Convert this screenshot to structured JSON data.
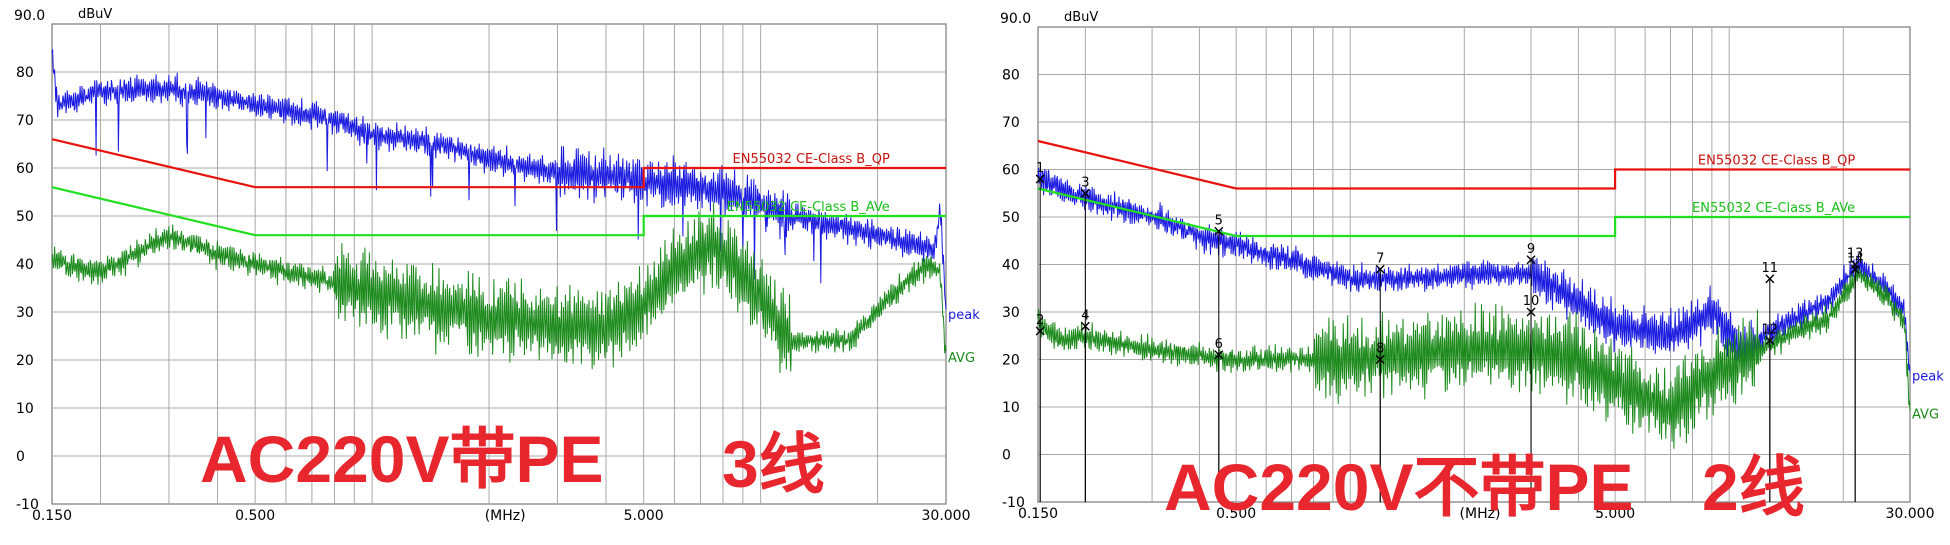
{
  "chart_data": [
    {
      "type": "line",
      "overlay_text": "AC220V带PE",
      "overlay_text_2": "3线",
      "unit_label": "dBuV",
      "x_unit_label": "(MHz)",
      "x_scale": "log",
      "xlim": [
        0.15,
        30.0
      ],
      "ylim": [
        -10,
        90
      ],
      "y_top_label": "90.0",
      "y_ticks": [
        "80",
        "70",
        "60",
        "50",
        "40",
        "30",
        "20",
        "10",
        "0",
        "-10"
      ],
      "x_ticks": [
        {
          "value": 0.15,
          "label": "0.150"
        },
        {
          "value": 0.5,
          "label": "0.500"
        },
        {
          "value": 5.0,
          "label": "5.000"
        },
        {
          "value": 30.0,
          "label": "30.000"
        }
      ],
      "grid": true,
      "limits": [
        {
          "name": "EN55032 CE-Class B_QP",
          "color": "#e8120c",
          "points": [
            [
              0.15,
              66
            ],
            [
              0.5,
              56
            ],
            [
              5.0,
              56
            ],
            [
              5.0,
              60
            ],
            [
              30.0,
              60
            ]
          ]
        },
        {
          "name": "EN55032 CE-Class B_AVe",
          "color": "#1fe01f",
          "points": [
            [
              0.15,
              56
            ],
            [
              0.5,
              46
            ],
            [
              5.0,
              46
            ],
            [
              5.0,
              50
            ],
            [
              30.0,
              50
            ]
          ]
        }
      ],
      "series": [
        {
          "name": "peak",
          "color": "#1a1ae0",
          "anchors": [
            [
              0.15,
              84
            ],
            [
              0.155,
              73
            ],
            [
              0.2,
              76
            ],
            [
              0.3,
              76.5
            ],
            [
              0.4,
              75
            ],
            [
              0.5,
              73
            ],
            [
              0.8,
              70
            ],
            [
              1.0,
              67
            ],
            [
              1.5,
              65
            ],
            [
              2.0,
              62
            ],
            [
              3.0,
              59
            ],
            [
              4.5,
              58
            ],
            [
              5.0,
              57
            ],
            [
              7.0,
              56
            ],
            [
              9.0,
              54
            ],
            [
              12.0,
              50
            ],
            [
              20.0,
              46
            ],
            [
              28.0,
              43
            ],
            [
              29.0,
              52
            ],
            [
              30.0,
              29
            ]
          ]
        },
        {
          "name": "AVG",
          "color": "#1b8a1b",
          "anchors": [
            [
              0.15,
              41
            ],
            [
              0.2,
              38
            ],
            [
              0.3,
              46
            ],
            [
              0.4,
              42
            ],
            [
              0.5,
              40
            ],
            [
              0.8,
              36
            ],
            [
              1.0,
              34
            ],
            [
              1.5,
              31
            ],
            [
              2.0,
              29
            ],
            [
              3.0,
              27
            ],
            [
              4.0,
              27
            ],
            [
              5.0,
              31
            ],
            [
              6.0,
              39
            ],
            [
              7.5,
              44
            ],
            [
              9.0,
              38
            ],
            [
              12.0,
              24
            ],
            [
              17.0,
              24
            ],
            [
              22.0,
              34
            ],
            [
              27.0,
              40
            ],
            [
              29.0,
              38
            ],
            [
              30.0,
              20
            ]
          ]
        }
      ],
      "markers": []
    },
    {
      "type": "line",
      "overlay_text": "AC220V不带PE",
      "overlay_text_2": "2线",
      "unit_label": "dBuV",
      "x_unit_label": "(MHz)",
      "x_scale": "log",
      "xlim": [
        0.15,
        30.0
      ],
      "ylim": [
        -10,
        90
      ],
      "y_top_label": "90.0",
      "y_ticks": [
        "80",
        "70",
        "60",
        "50",
        "40",
        "30",
        "20",
        "10",
        "0",
        "-10"
      ],
      "x_ticks": [
        {
          "value": 0.15,
          "label": "0.150"
        },
        {
          "value": 0.5,
          "label": "0.500"
        },
        {
          "value": 5.0,
          "label": "5.000"
        },
        {
          "value": 30.0,
          "label": "30.000"
        }
      ],
      "grid": true,
      "limits": [
        {
          "name": "EN55032 CE-Class B_QP",
          "color": "#e8120c",
          "points": [
            [
              0.15,
              66
            ],
            [
              0.5,
              56
            ],
            [
              5.0,
              56
            ],
            [
              5.0,
              60
            ],
            [
              30.0,
              60
            ]
          ]
        },
        {
          "name": "EN55032 CE-Class B_AVe",
          "color": "#1fe01f",
          "points": [
            [
              0.15,
              56
            ],
            [
              0.5,
              46
            ],
            [
              5.0,
              46
            ],
            [
              5.0,
              50
            ],
            [
              30.0,
              50
            ]
          ]
        }
      ],
      "series": [
        {
          "name": "peak",
          "color": "#1a1ae0",
          "anchors": [
            [
              0.15,
              58
            ],
            [
              0.2,
              54
            ],
            [
              0.3,
              50
            ],
            [
              0.4,
              46
            ],
            [
              0.5,
              44
            ],
            [
              0.7,
              41
            ],
            [
              1.0,
              37
            ],
            [
              1.5,
              37
            ],
            [
              2.0,
              38
            ],
            [
              3.0,
              38
            ],
            [
              4.0,
              32
            ],
            [
              5.0,
              27
            ],
            [
              7.0,
              25
            ],
            [
              9.0,
              30
            ],
            [
              11.0,
              22
            ],
            [
              13.0,
              26
            ],
            [
              18.0,
              32
            ],
            [
              22.0,
              40
            ],
            [
              26.0,
              35
            ],
            [
              29.0,
              30
            ],
            [
              30.0,
              16
            ]
          ]
        },
        {
          "name": "AVG",
          "color": "#1b8a1b",
          "anchors": [
            [
              0.15,
              28
            ],
            [
              0.17,
              24
            ],
            [
              0.2,
              25
            ],
            [
              0.3,
              22
            ],
            [
              0.5,
              20
            ],
            [
              1.0,
              20
            ],
            [
              2.0,
              22
            ],
            [
              3.0,
              22
            ],
            [
              4.0,
              20
            ],
            [
              5.0,
              15
            ],
            [
              6.0,
              12
            ],
            [
              7.0,
              9
            ],
            [
              9.0,
              17
            ],
            [
              11.0,
              20
            ],
            [
              15.0,
              26
            ],
            [
              18.0,
              28
            ],
            [
              22.0,
              38
            ],
            [
              26.0,
              33
            ],
            [
              29.0,
              28
            ],
            [
              30.0,
              8
            ]
          ]
        }
      ],
      "markers": [
        {
          "label": "1",
          "x": 0.152,
          "y": 58
        },
        {
          "label": "2",
          "x": 0.152,
          "y": 26
        },
        {
          "label": "3",
          "x": 0.2,
          "y": 55
        },
        {
          "label": "4",
          "x": 0.2,
          "y": 27
        },
        {
          "label": "5",
          "x": 0.45,
          "y": 47
        },
        {
          "label": "6",
          "x": 0.45,
          "y": 21
        },
        {
          "label": "7",
          "x": 1.2,
          "y": 39
        },
        {
          "label": "8",
          "x": 1.2,
          "y": 20
        },
        {
          "label": "9",
          "x": 3.0,
          "y": 41
        },
        {
          "label": "10",
          "x": 3.0,
          "y": 30
        },
        {
          "label": "11",
          "x": 12.8,
          "y": 37
        },
        {
          "label": "12",
          "x": 12.8,
          "y": 24
        },
        {
          "label": "13",
          "x": 21.5,
          "y": 40
        },
        {
          "label": "14",
          "x": 21.5,
          "y": 39
        }
      ]
    }
  ]
}
